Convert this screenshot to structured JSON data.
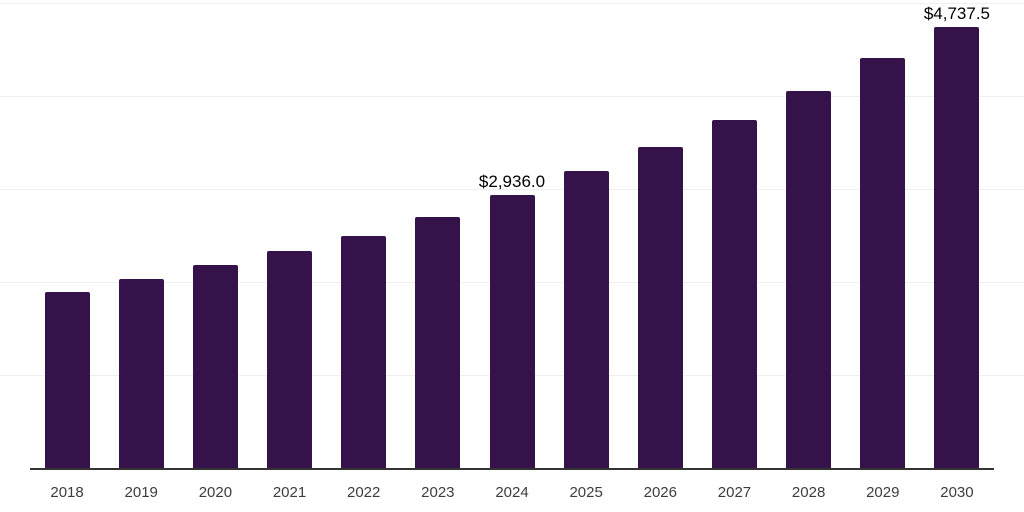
{
  "chart_data": {
    "type": "bar",
    "title": "",
    "xlabel": "",
    "ylabel": "",
    "categories": [
      "2018",
      "2019",
      "2020",
      "2021",
      "2022",
      "2023",
      "2024",
      "2025",
      "2026",
      "2027",
      "2028",
      "2029",
      "2030"
    ],
    "values": [
      1895,
      2030,
      2185,
      2330,
      2490,
      2700,
      2936.0,
      3190,
      3445,
      3740,
      4055,
      4410,
      4737.5
    ],
    "data_labels": [
      "",
      "",
      "",
      "",
      "",
      "",
      "$2,936.0",
      "",
      "",
      "",
      "",
      "",
      "$4,737.5"
    ],
    "ylim": [
      0,
      5000
    ],
    "gridline_step": 1000,
    "grid": "horizontal-only",
    "legend": "none",
    "y_axis_tick_labels_visible": false,
    "colors": {
      "bar": "#36124B",
      "axis": "#333333",
      "gridline": "#efefef",
      "value_label": "#000000",
      "tick_label": "#3d3d3d",
      "background": "#ffffff"
    }
  }
}
